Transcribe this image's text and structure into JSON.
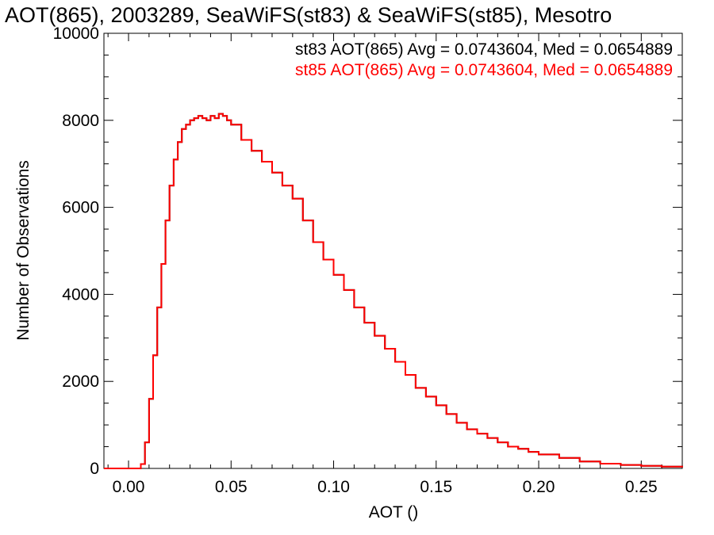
{
  "chart_data": {
    "type": "line",
    "title": "AOT(865), 2003289, SeaWiFS(st83) & SeaWiFS(st85), Mesotro",
    "xlabel": "AOT ()",
    "ylabel": "Number of Observations",
    "xlim": [
      -0.012,
      0.27
    ],
    "ylim": [
      0,
      10000
    ],
    "x_ticks": [
      "0.00",
      "0.05",
      "0.10",
      "0.15",
      "0.20",
      "0.25"
    ],
    "y_ticks": [
      "0",
      "2000",
      "4000",
      "6000",
      "8000",
      "10000"
    ],
    "grid": false,
    "legend_position": "top-right",
    "annotations": [
      {
        "text": "st83 AOT(865) Avg = 0.0743604, Med = 0.0654889",
        "color": "#000000"
      },
      {
        "text": "st85 AOT(865) Avg = 0.0743604, Med = 0.0654889",
        "color": "#ff0000"
      }
    ],
    "series": [
      {
        "name": "st83",
        "color": "#000000",
        "x": [
          -0.012,
          0.0,
          0.002,
          0.004,
          0.006,
          0.008,
          0.01,
          0.012,
          0.014,
          0.016,
          0.018,
          0.02,
          0.022,
          0.024,
          0.026,
          0.028,
          0.03,
          0.032,
          0.034,
          0.036,
          0.038,
          0.04,
          0.042,
          0.044,
          0.046,
          0.048,
          0.05,
          0.055,
          0.06,
          0.065,
          0.07,
          0.075,
          0.08,
          0.085,
          0.09,
          0.095,
          0.1,
          0.105,
          0.11,
          0.115,
          0.12,
          0.125,
          0.13,
          0.135,
          0.14,
          0.145,
          0.15,
          0.155,
          0.16,
          0.165,
          0.17,
          0.175,
          0.18,
          0.185,
          0.19,
          0.195,
          0.2,
          0.21,
          0.22,
          0.23,
          0.24,
          0.25,
          0.26,
          0.27
        ],
        "values": [
          0,
          0,
          0,
          0,
          100,
          600,
          1600,
          2600,
          3700,
          4700,
          5700,
          6500,
          7100,
          7500,
          7800,
          7900,
          8000,
          8050,
          8100,
          8050,
          8000,
          8100,
          8050,
          8150,
          8100,
          8000,
          7900,
          7550,
          7300,
          7050,
          6800,
          6500,
          6200,
          5700,
          5200,
          4800,
          4450,
          4100,
          3700,
          3350,
          3050,
          2750,
          2450,
          2150,
          1850,
          1650,
          1450,
          1250,
          1050,
          900,
          800,
          700,
          600,
          500,
          450,
          380,
          320,
          240,
          160,
          110,
          80,
          60,
          40,
          25
        ]
      },
      {
        "name": "st85",
        "color": "#ff0000",
        "x": [
          -0.012,
          0.0,
          0.002,
          0.004,
          0.006,
          0.008,
          0.01,
          0.012,
          0.014,
          0.016,
          0.018,
          0.02,
          0.022,
          0.024,
          0.026,
          0.028,
          0.03,
          0.032,
          0.034,
          0.036,
          0.038,
          0.04,
          0.042,
          0.044,
          0.046,
          0.048,
          0.05,
          0.055,
          0.06,
          0.065,
          0.07,
          0.075,
          0.08,
          0.085,
          0.09,
          0.095,
          0.1,
          0.105,
          0.11,
          0.115,
          0.12,
          0.125,
          0.13,
          0.135,
          0.14,
          0.145,
          0.15,
          0.155,
          0.16,
          0.165,
          0.17,
          0.175,
          0.18,
          0.185,
          0.19,
          0.195,
          0.2,
          0.21,
          0.22,
          0.23,
          0.24,
          0.25,
          0.26,
          0.27
        ],
        "values": [
          0,
          0,
          0,
          0,
          100,
          600,
          1600,
          2600,
          3700,
          4700,
          5700,
          6500,
          7100,
          7500,
          7800,
          7900,
          8000,
          8050,
          8100,
          8050,
          8000,
          8100,
          8050,
          8150,
          8100,
          8000,
          7900,
          7550,
          7300,
          7050,
          6800,
          6500,
          6200,
          5700,
          5200,
          4800,
          4450,
          4100,
          3700,
          3350,
          3050,
          2750,
          2450,
          2150,
          1850,
          1650,
          1450,
          1250,
          1050,
          900,
          800,
          700,
          600,
          500,
          450,
          380,
          320,
          240,
          160,
          110,
          80,
          60,
          40,
          25
        ]
      }
    ]
  }
}
